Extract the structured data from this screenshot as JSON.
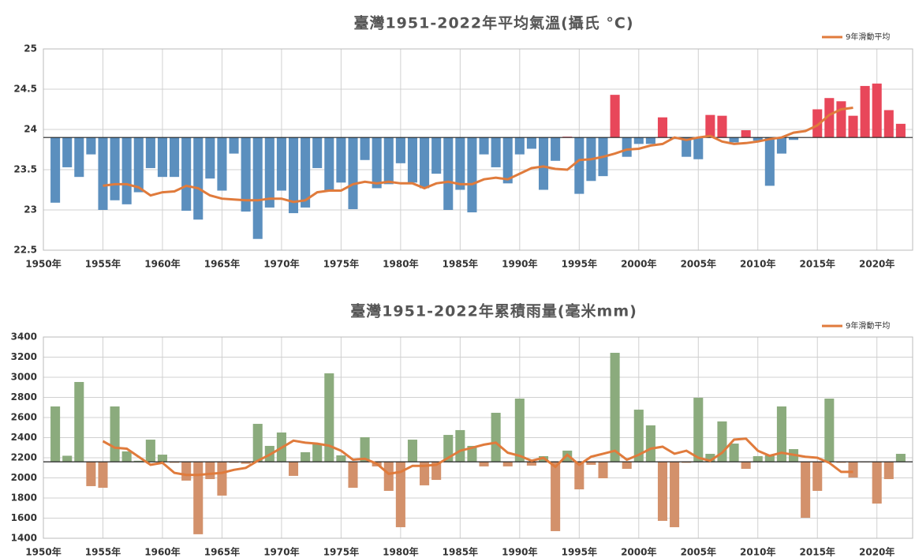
{
  "chart_data": [
    {
      "type": "bar",
      "title": "臺灣1951-2022年平均氣溫(攝氏 °C)",
      "x": [
        1951,
        1952,
        1953,
        1954,
        1955,
        1956,
        1957,
        1958,
        1959,
        1960,
        1961,
        1962,
        1963,
        1964,
        1965,
        1966,
        1967,
        1968,
        1969,
        1970,
        1971,
        1972,
        1973,
        1974,
        1975,
        1976,
        1977,
        1978,
        1979,
        1980,
        1981,
        1982,
        1983,
        1984,
        1985,
        1986,
        1987,
        1988,
        1989,
        1990,
        1991,
        1992,
        1993,
        1994,
        1995,
        1996,
        1997,
        1998,
        1999,
        2000,
        2001,
        2002,
        2003,
        2004,
        2005,
        2006,
        2007,
        2008,
        2009,
        2010,
        2011,
        2012,
        2013,
        2014,
        2015,
        2016,
        2017,
        2018,
        2019,
        2020,
        2021,
        2022
      ],
      "values": [
        23.09,
        23.53,
        23.41,
        23.69,
        23.0,
        23.12,
        23.07,
        23.22,
        23.52,
        23.41,
        23.41,
        22.99,
        22.88,
        23.39,
        23.24,
        23.7,
        22.98,
        22.64,
        23.03,
        23.24,
        22.96,
        23.03,
        23.52,
        23.24,
        23.34,
        23.01,
        23.62,
        23.27,
        23.32,
        23.58,
        23.34,
        23.27,
        23.45,
        23.0,
        23.25,
        22.97,
        23.69,
        23.53,
        23.33,
        23.69,
        23.76,
        23.25,
        23.61,
        23.91,
        23.2,
        23.36,
        23.42,
        24.43,
        23.66,
        23.82,
        23.82,
        24.15,
        23.88,
        23.66,
        23.63,
        24.18,
        24.17,
        23.84,
        23.99,
        23.86,
        23.3,
        23.7,
        23.87,
        23.9,
        24.25,
        24.39,
        24.35,
        24.17,
        24.54,
        24.57,
        24.24,
        24.07
      ],
      "baseline": 23.9,
      "colors": {
        "above": "#e8475a",
        "below": "#5b8fbe"
      },
      "series": [
        {
          "name": "9年滑動平均",
          "color": "#e07b3c",
          "values": [
            null,
            null,
            null,
            null,
            23.3,
            23.32,
            23.32,
            23.28,
            23.18,
            23.22,
            23.23,
            23.3,
            23.27,
            23.18,
            23.14,
            23.13,
            23.12,
            23.12,
            23.14,
            23.14,
            23.1,
            23.12,
            23.22,
            23.24,
            23.24,
            23.32,
            23.35,
            23.33,
            23.35,
            23.33,
            23.33,
            23.27,
            23.33,
            23.35,
            23.32,
            23.32,
            23.38,
            23.4,
            23.38,
            23.45,
            23.52,
            23.54,
            23.51,
            23.5,
            23.62,
            23.63,
            23.66,
            23.7,
            23.75,
            23.76,
            23.8,
            23.82,
            23.9,
            23.87,
            23.9,
            23.92,
            23.85,
            23.82,
            23.83,
            23.85,
            23.88,
            23.9,
            23.96,
            23.98,
            24.05,
            24.18,
            24.25,
            24.27,
            null,
            null,
            null,
            null
          ]
        }
      ],
      "xlim": [
        1950,
        2023
      ],
      "xticks": [
        {
          "value": 1950,
          "label": "1950年"
        },
        {
          "value": 1955,
          "label": "1955年"
        },
        {
          "value": 1960,
          "label": "1960年"
        },
        {
          "value": 1965,
          "label": "1965年"
        },
        {
          "value": 1970,
          "label": "1970年"
        },
        {
          "value": 1975,
          "label": "1975年"
        },
        {
          "value": 1980,
          "label": "1980年"
        },
        {
          "value": 1985,
          "label": "1985年"
        },
        {
          "value": 1990,
          "label": "1990年"
        },
        {
          "value": 1995,
          "label": "1995年"
        },
        {
          "value": 2000,
          "label": "2000年"
        },
        {
          "value": 2005,
          "label": "2005年"
        },
        {
          "value": 2010,
          "label": "2010年"
        },
        {
          "value": 2015,
          "label": "2015年"
        },
        {
          "value": 2020,
          "label": "2020年"
        }
      ],
      "ylim": [
        22.5,
        25
      ],
      "yticks": [
        22.5,
        23,
        23.5,
        24,
        24.5,
        25
      ],
      "grid": true,
      "legend": "upper right"
    },
    {
      "type": "bar",
      "title": "臺灣1951-2022年累積雨量(毫米mm)",
      "x": [
        1951,
        1952,
        1953,
        1954,
        1955,
        1956,
        1957,
        1958,
        1959,
        1960,
        1961,
        1962,
        1963,
        1964,
        1965,
        1966,
        1967,
        1968,
        1969,
        1970,
        1971,
        1972,
        1973,
        1974,
        1975,
        1976,
        1977,
        1978,
        1979,
        1980,
        1981,
        1982,
        1983,
        1984,
        1985,
        1986,
        1987,
        1988,
        1989,
        1990,
        1991,
        1992,
        1993,
        1994,
        1995,
        1996,
        1997,
        1998,
        1999,
        2000,
        2001,
        2002,
        2003,
        2004,
        2005,
        2006,
        2007,
        2008,
        2009,
        2010,
        2011,
        2012,
        2013,
        2014,
        2015,
        2016,
        2017,
        2018,
        2019,
        2020,
        2021,
        2022
      ],
      "values": [
        2710,
        2220,
        2953,
        1918,
        1902,
        2710,
        2263,
        2170,
        2380,
        2231,
        2150,
        1973,
        1440,
        1988,
        1824,
        2150,
        2140,
        2537,
        2318,
        2451,
        2020,
        2255,
        2341,
        3039,
        2224,
        1902,
        2404,
        2114,
        1871,
        1510,
        2380,
        1926,
        1980,
        2427,
        2475,
        2318,
        2114,
        2647,
        2114,
        2788,
        2122,
        2216,
        1471,
        2271,
        1886,
        2130,
        1996,
        3243,
        2090,
        2678,
        2522,
        1573,
        1510,
        2150,
        2796,
        2239,
        2561,
        2341,
        2090,
        2216,
        2224,
        2710,
        2286,
        1604,
        1871,
        2788,
        2150,
        2004,
        2155,
        1745,
        1988,
        2239
      ],
      "baseline": 2160,
      "colors": {
        "above": "#8bab7d",
        "below": "#d3916b"
      },
      "series": [
        {
          "name": "9年滑動平均",
          "color": "#e07b3c",
          "values": [
            null,
            null,
            null,
            null,
            2365,
            2300,
            2290,
            2210,
            2130,
            2150,
            2050,
            2030,
            2030,
            2040,
            2050,
            2080,
            2100,
            2170,
            2230,
            2300,
            2370,
            2350,
            2340,
            2320,
            2270,
            2180,
            2190,
            2140,
            2040,
            2060,
            2120,
            2120,
            2130,
            2200,
            2270,
            2300,
            2330,
            2350,
            2250,
            2220,
            2170,
            2200,
            2110,
            2230,
            2130,
            2210,
            2240,
            2270,
            2180,
            2230,
            2290,
            2310,
            2240,
            2270,
            2200,
            2170,
            2250,
            2380,
            2390,
            2270,
            2220,
            2250,
            2230,
            2210,
            2200,
            2150,
            2060,
            2060,
            null,
            null,
            null,
            null
          ]
        }
      ],
      "xlim": [
        1950,
        2023
      ],
      "xticks": [
        {
          "value": 1950,
          "label": "1950年"
        },
        {
          "value": 1955,
          "label": "1955年"
        },
        {
          "value": 1960,
          "label": "1960年"
        },
        {
          "value": 1965,
          "label": "1965年"
        },
        {
          "value": 1970,
          "label": "1970年"
        },
        {
          "value": 1975,
          "label": "1975年"
        },
        {
          "value": 1980,
          "label": "1980年"
        },
        {
          "value": 1985,
          "label": "1985年"
        },
        {
          "value": 1990,
          "label": "1990年"
        },
        {
          "value": 1995,
          "label": "1995年"
        },
        {
          "value": 2000,
          "label": "2000年"
        },
        {
          "value": 2005,
          "label": "2005年"
        },
        {
          "value": 2010,
          "label": "2010年"
        },
        {
          "value": 2015,
          "label": "2015年"
        },
        {
          "value": 2020,
          "label": "2020年"
        }
      ],
      "ylim": [
        1400,
        3400
      ],
      "yticks": [
        1400,
        1600,
        1800,
        2000,
        2200,
        2400,
        2600,
        2800,
        3000,
        3200,
        3400
      ],
      "grid": true,
      "legend": "upper right"
    }
  ]
}
